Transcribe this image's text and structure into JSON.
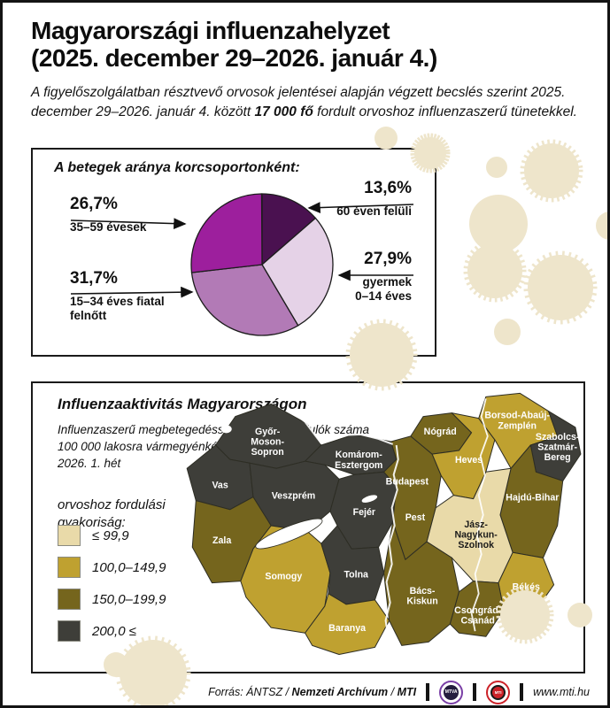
{
  "page": {
    "title_line1": "Magyarországi influenzahelyzet",
    "title_line2": "(2025. december 29–2026. január 4.)",
    "intro": {
      "pre": "A figyelőszolgálatban résztvevő orvosok jelentései alapján végzett becslés szerint 2025. december 29–2026. január 4. között ",
      "highlight": "17 000 fő",
      "post": " fordult orvoshoz influenzaszerű tünetekkel."
    }
  },
  "pie_section": {
    "title": "A betegek aránya korcsoportonként:"
  },
  "chart_data": [
    {
      "type": "pie",
      "title": "A betegek aránya korcsoportonként:",
      "start_angle_deg": 0,
      "direction": "clockwise",
      "slices": [
        {
          "label": "60 éven felüli",
          "value_pct": 13.6,
          "value_label": "13,6%",
          "color": "#4a1150",
          "label_lines": [
            "60 éven felüli"
          ]
        },
        {
          "label": "gyermek 0–14 éves",
          "value_pct": 27.9,
          "value_label": "27,9%",
          "color": "#e5d2e7",
          "label_lines": [
            "gyermek",
            "0–14 éves"
          ]
        },
        {
          "label": "15–34 éves fiatal felnőtt",
          "value_pct": 31.7,
          "value_label": "31,7%",
          "color": "#b27ab6",
          "label_lines": [
            "15–34 éves fiatal",
            "felnőtt"
          ]
        },
        {
          "label": "35–59 évesek",
          "value_pct": 26.7,
          "value_label": "26,7%",
          "color": "#9d1f9d",
          "label_lines": [
            "35–59 évesek"
          ]
        }
      ]
    },
    {
      "type": "choropleth-map",
      "title": "Influenzaaktivitás Magyarországon",
      "unit_note": "Influenzaszerű megbetegedéssel orvoshoz fordulók száma 100 000 lakosra vármegyénként, 2026. 1. hét",
      "categories": [
        {
          "label": "≤ 99,9",
          "color": "#e9daa9"
        },
        {
          "label": "100,0–149,9",
          "color": "#bfa130"
        },
        {
          "label": "150,0–199,9",
          "color": "#75651d"
        },
        {
          "label": "200,0 ≤",
          "color": "#3e3e39"
        }
      ],
      "regions": [
        {
          "name": "Győr-Moson-Sopron",
          "lines": [
            "Győr-",
            "Moson-",
            "Sopron"
          ],
          "category": 3
        },
        {
          "name": "Komárom-Esztergom",
          "lines": [
            "Komárom-",
            "Esztergom"
          ],
          "category": 3
        },
        {
          "name": "Vas",
          "lines": [
            "Vas"
          ],
          "category": 3
        },
        {
          "name": "Veszprém",
          "lines": [
            "Veszprém"
          ],
          "category": 3
        },
        {
          "name": "Fejér",
          "lines": [
            "Fejér"
          ],
          "category": 3
        },
        {
          "name": "Zala",
          "lines": [
            "Zala"
          ],
          "category": 2
        },
        {
          "name": "Somogy",
          "lines": [
            "Somogy"
          ],
          "category": 1
        },
        {
          "name": "Tolna",
          "lines": [
            "Tolna"
          ],
          "category": 3
        },
        {
          "name": "Baranya",
          "lines": [
            "Baranya"
          ],
          "category": 1
        },
        {
          "name": "Budapest",
          "lines": [
            "Budapest"
          ],
          "category": 2
        },
        {
          "name": "Pest",
          "lines": [
            "Pest"
          ],
          "category": 2
        },
        {
          "name": "Nógrád",
          "lines": [
            "Nógrád"
          ],
          "category": 2
        },
        {
          "name": "Heves",
          "lines": [
            "Heves"
          ],
          "category": 1
        },
        {
          "name": "Borsod-Abaúj-Zemplén",
          "lines": [
            "Borsod-Abaúj-",
            "Zemplén"
          ],
          "category": 1
        },
        {
          "name": "Szabolcs-Szatmár-Bereg",
          "lines": [
            "Szabolcs-",
            "Szatmár-",
            "Bereg"
          ],
          "category": 3
        },
        {
          "name": "Hajdú-Bihar",
          "lines": [
            "Hajdú-Bihar"
          ],
          "category": 2
        },
        {
          "name": "Jász-Nagykun-Szolnok",
          "lines": [
            "Jász-",
            "Nagykun-",
            "Szolnok"
          ],
          "category": 0
        },
        {
          "name": "Bács-Kiskun",
          "lines": [
            "Bács-",
            "Kiskun"
          ],
          "category": 2
        },
        {
          "name": "Békés",
          "lines": [
            "Békés"
          ],
          "category": 1
        },
        {
          "name": "Csongrád-Csanád",
          "lines": [
            "Csongrád-",
            "Csanád"
          ],
          "category": 2
        }
      ]
    }
  ],
  "map_section": {
    "title": "Influenzaaktivitás Magyarországon",
    "subtitle_lines": [
      "Influenzaszerű megbetegedéssel orvoshoz fordulók száma",
      "100 000 lakosra vármegyénként",
      "2026. 1. hét"
    ],
    "legend_title_line1": "orvoshoz fordulási",
    "legend_title_line2": "gyakoriság:"
  },
  "footer": {
    "source_prefix": "Forrás: ÁNTSZ / ",
    "source_bold1": "Nemzeti Archívum",
    "source_sep": " / ",
    "source_bold2": "MTI",
    "mtva_logo_text": "MTVA",
    "mti_logo_text": "MTI",
    "url": "www.mti.hu"
  },
  "colors": {
    "decor_blob": "#eee5cb",
    "border": "#141414",
    "water": "#ffffff"
  }
}
